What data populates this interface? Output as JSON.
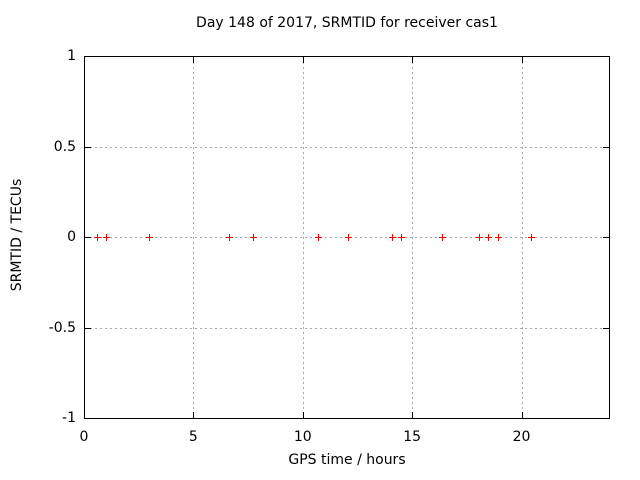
{
  "colors": {
    "background": "#ffffff",
    "axis": "#000000",
    "grid": "#a8a8a8",
    "marker": "#ff0000"
  },
  "chart_data": {
    "type": "scatter",
    "title": "Day 148 of 2017, SRMTID for receiver cas1",
    "xlabel": "GPS time / hours",
    "ylabel": "SRMTID / TECUs",
    "xlim": [
      0,
      24
    ],
    "ylim": [
      -1,
      1
    ],
    "xticks": [
      0,
      5,
      10,
      15,
      20
    ],
    "xtick_labels": [
      "0",
      "5",
      "10",
      "15",
      "20"
    ],
    "yticks": [
      -1,
      -0.5,
      0,
      0.5,
      1
    ],
    "ytick_labels": [
      "-1",
      "-0.5",
      "0",
      "0.5",
      "1"
    ],
    "grid": true,
    "legend": false,
    "marker_style": "plus",
    "series": [
      {
        "x": [
          0.58,
          1.01,
          2.99,
          6.63,
          7.73,
          10.71,
          12.08,
          14.07,
          14.48,
          16.35,
          18.07,
          18.45,
          18.94,
          20.42
        ],
        "y": [
          0,
          0,
          0,
          0,
          0,
          0,
          0,
          0,
          0,
          0,
          0,
          0,
          0,
          0
        ]
      }
    ]
  }
}
